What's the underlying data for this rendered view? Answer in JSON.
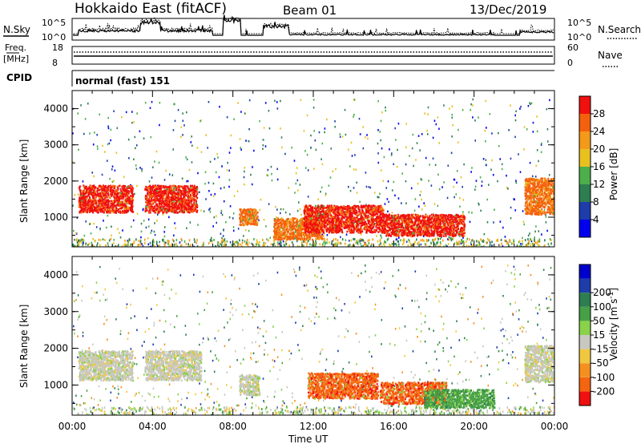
{
  "header": {
    "title": "Hokkaido East (fitACF)",
    "beam": "Beam 01",
    "date": "13/Dec/2019"
  },
  "strip_panels": {
    "nsky": {
      "label": "N.Sky",
      "left_ticks": [
        "10^5",
        "10^0"
      ],
      "right_ticks": [
        "10^5",
        "10^0"
      ],
      "right_label": "N.Search"
    },
    "freq": {
      "label_line1": "Freq.",
      "label_line2": "[MHz]",
      "left_ticks": [
        "18",
        "8"
      ],
      "right_ticks": [
        "60",
        "0"
      ],
      "right_label": "Nave"
    },
    "cpid": {
      "label": "CPID",
      "text": "normal (fast) 151"
    }
  },
  "colors": {
    "power_scale": [
      "#0000ee",
      "#1e3caa",
      "#2e7e50",
      "#4caf4c",
      "#e8c020",
      "#f39a1a",
      "#f5600f",
      "#f01010"
    ],
    "velocity_scale": [
      "#f01010",
      "#f56410",
      "#f59020",
      "#f0c840",
      "#c8c8c0",
      "#8ad24a",
      "#46a046",
      "#2e7e50",
      "#1e3caa",
      "#0000cc"
    ]
  },
  "chart_data": [
    {
      "type": "heatmap",
      "panel": "power",
      "xlabel": "",
      "ylabel": "Slant Range [km]",
      "ylim": [
        180,
        4500
      ],
      "xlim_hours": [
        0,
        24
      ],
      "y_ticks": [
        "1000",
        "2000",
        "3000",
        "4000"
      ],
      "colorbar_label": "Power [dB]",
      "colorbar_ticks": [
        "4",
        "8",
        "12",
        "16",
        "20",
        "24",
        "28"
      ],
      "regions": [
        {
          "t": [
            0.3,
            3.0
          ],
          "r": [
            1150,
            1900
          ],
          "level": 7
        },
        {
          "t": [
            3.6,
            6.2
          ],
          "r": [
            1150,
            1900
          ],
          "level": 7
        },
        {
          "t": [
            8.3,
            9.2
          ],
          "r": [
            800,
            1250
          ],
          "level": 6
        },
        {
          "t": [
            10.0,
            12.5
          ],
          "r": [
            400,
            1000
          ],
          "level": 6
        },
        {
          "t": [
            11.5,
            15.5
          ],
          "r": [
            600,
            1350
          ],
          "level": 7
        },
        {
          "t": [
            15.5,
            19.5
          ],
          "r": [
            500,
            1100
          ],
          "level": 7
        },
        {
          "t": [
            22.5,
            24.0
          ],
          "r": [
            1100,
            2100
          ],
          "level": 6
        }
      ]
    },
    {
      "type": "heatmap",
      "panel": "velocity",
      "xlabel": "Time UT",
      "ylabel": "Slant Range [km]",
      "ylim": [
        180,
        4500
      ],
      "xlim_hours": [
        0,
        24
      ],
      "x_ticks": [
        "00:00",
        "04:00",
        "08:00",
        "12:00",
        "16:00",
        "20:00",
        "00:00"
      ],
      "y_ticks": [
        "1000",
        "2000",
        "3000",
        "4000"
      ],
      "colorbar_label": "Velocity [m s",
      "colorbar_label_sup": "-1",
      "colorbar_label_end": "]",
      "colorbar_ticks": [
        "-200",
        "-100",
        "-50",
        "-15",
        "15",
        "50",
        "100",
        "200"
      ],
      "regions": [
        {
          "t": [
            0.3,
            3.0
          ],
          "r": [
            1150,
            1950
          ],
          "level": 4
        },
        {
          "t": [
            3.6,
            6.4
          ],
          "r": [
            1150,
            1950
          ],
          "level": 4
        },
        {
          "t": [
            8.3,
            9.3
          ],
          "r": [
            750,
            1300
          ],
          "level": 4
        },
        {
          "t": [
            11.7,
            15.2
          ],
          "r": [
            650,
            1350
          ],
          "level": 1
        },
        {
          "t": [
            15.3,
            18.6
          ],
          "r": [
            500,
            1100
          ],
          "level": 1
        },
        {
          "t": [
            17.5,
            21.0
          ],
          "r": [
            400,
            900
          ],
          "level": 6
        },
        {
          "t": [
            22.5,
            24.0
          ],
          "r": [
            1100,
            2100
          ],
          "level": 4
        }
      ]
    }
  ]
}
